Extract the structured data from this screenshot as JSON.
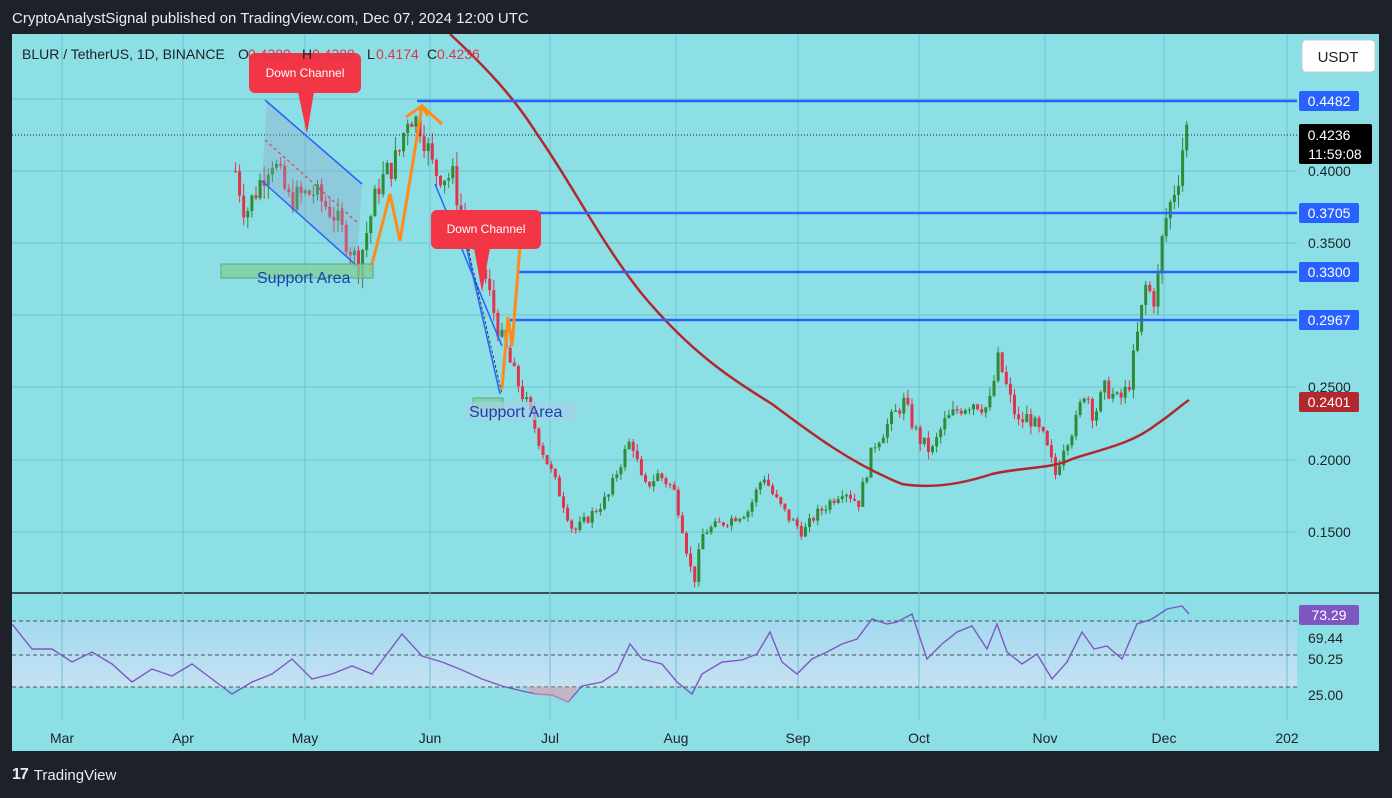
{
  "header": {
    "publisher_line": "CryptoAnalystSignal published on TradingView.com, Dec 07, 2024 12:00 UTC"
  },
  "footer": {
    "brand": "TradingView",
    "brand_logo_icon": "tradingview-logo-icon"
  },
  "symbol_bar": {
    "symbol": "BLUR / TetherUS, 1D, BINANCE",
    "open_label": "O",
    "open": "0.4380",
    "high_label": "H",
    "high": "0.4388",
    "low_label": "L",
    "low": "0.4174",
    "close_label": "C",
    "close": "0.4236"
  },
  "currency_button": "USDT",
  "colors": {
    "up": "#2f8b36",
    "down": "#e0334c",
    "level_line": "#2961ff",
    "ma": "#b2282f",
    "rsi": "#7e57c2",
    "orange": "#ff8c1a",
    "annotation": "#f23645",
    "support_box": "#7fcf9e"
  },
  "price_labels": {
    "last_price": "0.4236",
    "countdown": "11:59:08",
    "level_4482": "0.4482",
    "level_3705": "0.3705",
    "level_3300": "0.3300",
    "level_2967": "0.2967",
    "ma_value": "0.2401"
  },
  "annotations": {
    "down_channel_1": "Down Channel",
    "down_channel_2": "Down Channel",
    "support_area_1": "Support Area",
    "support_area_2": "Support Area"
  },
  "rsi_labels": {
    "value": "73.29",
    "upper": "69.44",
    "mid": "50.25",
    "lower": "25.00"
  },
  "chart_data": {
    "type": "candlestick",
    "title": "BLUR / TetherUS, 1D, BINANCE",
    "x_ticks": [
      "Mar",
      "Apr",
      "May",
      "Jun",
      "Jul",
      "Aug",
      "Sep",
      "Oct",
      "Nov",
      "Dec",
      "202"
    ],
    "y_ticks": [
      "0.4000",
      "0.3500",
      "0.2500",
      "0.2000",
      "0.1500"
    ],
    "ylim": [
      0.115,
      0.46
    ],
    "horizontal_levels": [
      0.4482,
      0.3705,
      0.33,
      0.2967
    ],
    "last_price": 0.4236,
    "moving_average_last": 0.2401,
    "ohlc_approx": [
      {
        "date": "2024-04-13",
        "close": 0.4
      },
      {
        "date": "2024-04-20",
        "close": 0.41
      },
      {
        "date": "2024-04-27",
        "close": 0.4
      },
      {
        "date": "2024-05-04",
        "close": 0.38
      },
      {
        "date": "2024-05-11",
        "close": 0.36
      },
      {
        "date": "2024-05-18",
        "close": 0.35
      },
      {
        "date": "2024-05-25",
        "close": 0.43
      },
      {
        "date": "2024-06-01",
        "close": 0.42
      },
      {
        "date": "2024-06-08",
        "close": 0.4
      },
      {
        "date": "2024-06-15",
        "close": 0.33
      },
      {
        "date": "2024-06-22",
        "close": 0.25
      },
      {
        "date": "2024-06-29",
        "close": 0.21
      },
      {
        "date": "2024-07-06",
        "close": 0.15
      },
      {
        "date": "2024-07-13",
        "close": 0.17
      },
      {
        "date": "2024-07-20",
        "close": 0.21
      },
      {
        "date": "2024-07-27",
        "close": 0.19
      },
      {
        "date": "2024-08-05",
        "close": 0.13
      },
      {
        "date": "2024-08-17",
        "close": 0.16
      },
      {
        "date": "2024-08-31",
        "close": 0.18
      },
      {
        "date": "2024-09-14",
        "close": 0.17
      },
      {
        "date": "2024-09-28",
        "close": 0.24
      },
      {
        "date": "2024-10-12",
        "close": 0.23
      },
      {
        "date": "2024-10-26",
        "close": 0.24
      },
      {
        "date": "2024-11-05",
        "close": 0.19
      },
      {
        "date": "2024-11-16",
        "close": 0.26
      },
      {
        "date": "2024-11-26",
        "close": 0.33
      },
      {
        "date": "2024-12-07",
        "close": 0.4236
      }
    ],
    "rsi": {
      "last": 73.29,
      "upper_band": 69.44,
      "middle": 50.25,
      "lower_band": 25.0
    }
  }
}
